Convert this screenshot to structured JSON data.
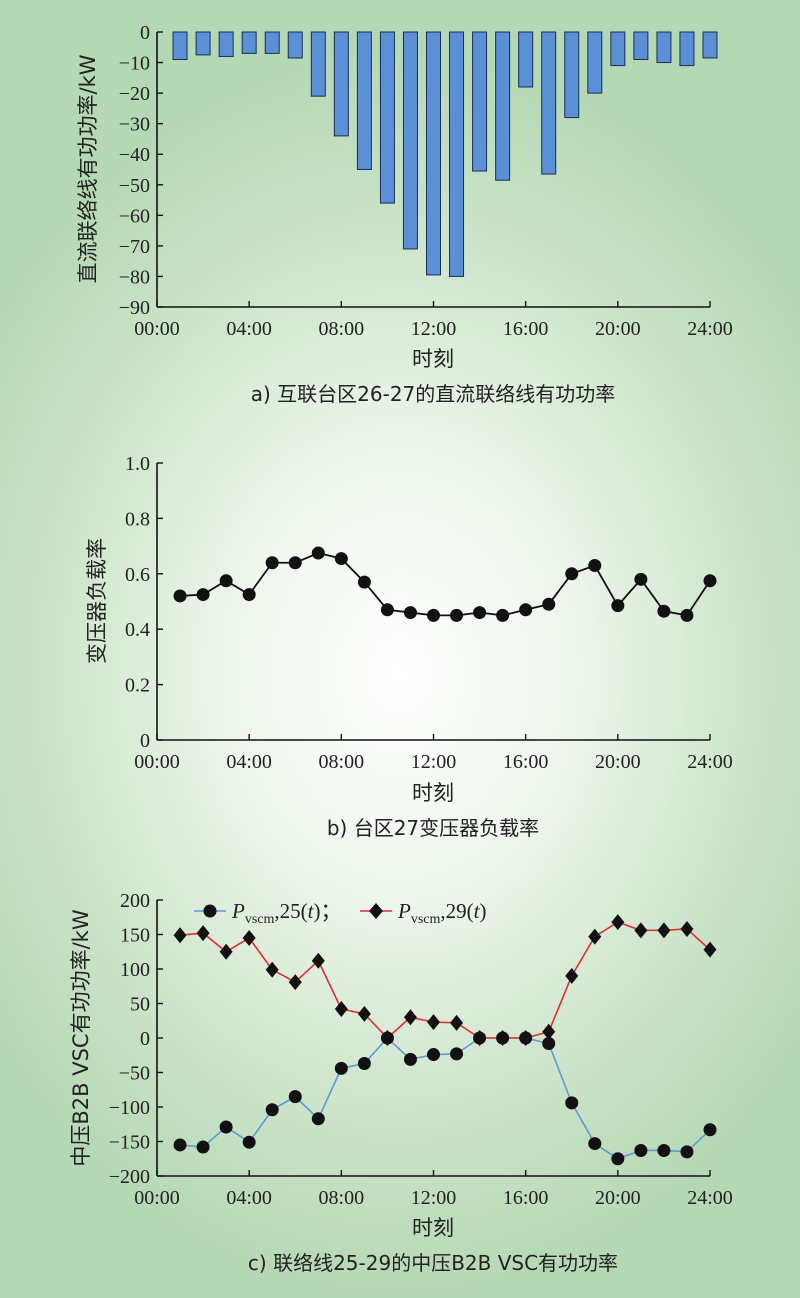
{
  "chart_data": [
    {
      "type": "bar",
      "ylabel": "直流联络线有功功率/kW",
      "xlabel": "时刻",
      "caption": "a) 互联台区26-27的直流联络线有功功率",
      "x_ticks": [
        "00:00",
        "04:00",
        "08:00",
        "12:00",
        "16:00",
        "20:00",
        "24:00"
      ],
      "y_ticks": [
        "0",
        "−10",
        "−20",
        "−30",
        "−40",
        "−50",
        "−60",
        "−70",
        "−80",
        "−90"
      ],
      "xlim": [
        0,
        24
      ],
      "ylim": [
        -90,
        0
      ],
      "bar_color": "#5b8fd6",
      "x": [
        1,
        2,
        3,
        4,
        5,
        6,
        7,
        8,
        9,
        10,
        11,
        12,
        13,
        14,
        15,
        16,
        17,
        18,
        19,
        20,
        21,
        22,
        23,
        24
      ],
      "values": [
        -9,
        -7.5,
        -8,
        -7,
        -7,
        -8.5,
        -21,
        -34,
        -45,
        -56,
        -71,
        -79.5,
        -80,
        -45.5,
        -48.5,
        -18,
        -46.5,
        -28,
        -20,
        -11,
        -9,
        -10,
        -11,
        -8.5
      ]
    },
    {
      "type": "line",
      "ylabel": "变压器负载率",
      "xlabel": "时刻",
      "caption": "b) 台区27变压器负载率",
      "x_ticks": [
        "00:00",
        "04:00",
        "08:00",
        "12:00",
        "16:00",
        "20:00",
        "24:00"
      ],
      "y_ticks": [
        "0",
        "0.2",
        "0.4",
        "0.6",
        "0.8",
        "1.0"
      ],
      "xlim": [
        0,
        24
      ],
      "ylim": [
        0,
        1.0
      ],
      "line_color": "#111111",
      "x": [
        1,
        2,
        3,
        4,
        5,
        6,
        7,
        8,
        9,
        10,
        11,
        12,
        13,
        14,
        15,
        16,
        17,
        18,
        19,
        20,
        21,
        22,
        23,
        24
      ],
      "values": [
        0.52,
        0.525,
        0.575,
        0.525,
        0.64,
        0.64,
        0.675,
        0.655,
        0.57,
        0.47,
        0.46,
        0.45,
        0.45,
        0.46,
        0.45,
        0.47,
        0.49,
        0.6,
        0.63,
        0.485,
        0.58,
        0.465,
        0.45,
        0.575
      ]
    },
    {
      "type": "line",
      "ylabel": "中压B2B VSC有功功率/kW",
      "xlabel": "时刻",
      "caption": "c) 联络线25-29的中压B2B VSC有功功率",
      "x_ticks": [
        "00:00",
        "04:00",
        "08:00",
        "12:00",
        "16:00",
        "20:00",
        "24:00"
      ],
      "y_ticks": [
        "200",
        "150",
        "100",
        "50",
        "0",
        "−50",
        "−100",
        "−150",
        "−200"
      ],
      "xlim": [
        0,
        24
      ],
      "ylim": [
        -200,
        200
      ],
      "legend": {
        "series1": {
          "symbol": "P",
          "sub": "vscm",
          "suffix": ",25(",
          "var": "t",
          "close": ")；"
        },
        "series2": {
          "symbol": "P",
          "sub": "vscm",
          "suffix": ",29(",
          "var": "t",
          "close": ")"
        }
      },
      "x": [
        1,
        2,
        3,
        4,
        5,
        6,
        7,
        8,
        9,
        10,
        11,
        12,
        13,
        14,
        15,
        16,
        17,
        18,
        19,
        20,
        21,
        22,
        23,
        24
      ],
      "series": [
        {
          "marker": "circle",
          "line_color": "#5b9bd5",
          "values": [
            -155,
            -158,
            -129,
            -151,
            -104,
            -85,
            -117,
            -44,
            -37,
            0,
            -31,
            -24,
            -23,
            0,
            0,
            0,
            -8,
            -94,
            -153,
            -175,
            -163,
            -163,
            -165,
            -133
          ]
        },
        {
          "marker": "diamond",
          "line_color": "#e03030",
          "values": [
            149,
            152,
            125,
            145,
            99,
            81,
            112,
            42,
            35,
            0,
            30,
            23,
            22,
            0,
            0,
            0,
            9,
            90,
            147,
            168,
            156,
            156,
            158,
            128
          ]
        }
      ]
    }
  ]
}
